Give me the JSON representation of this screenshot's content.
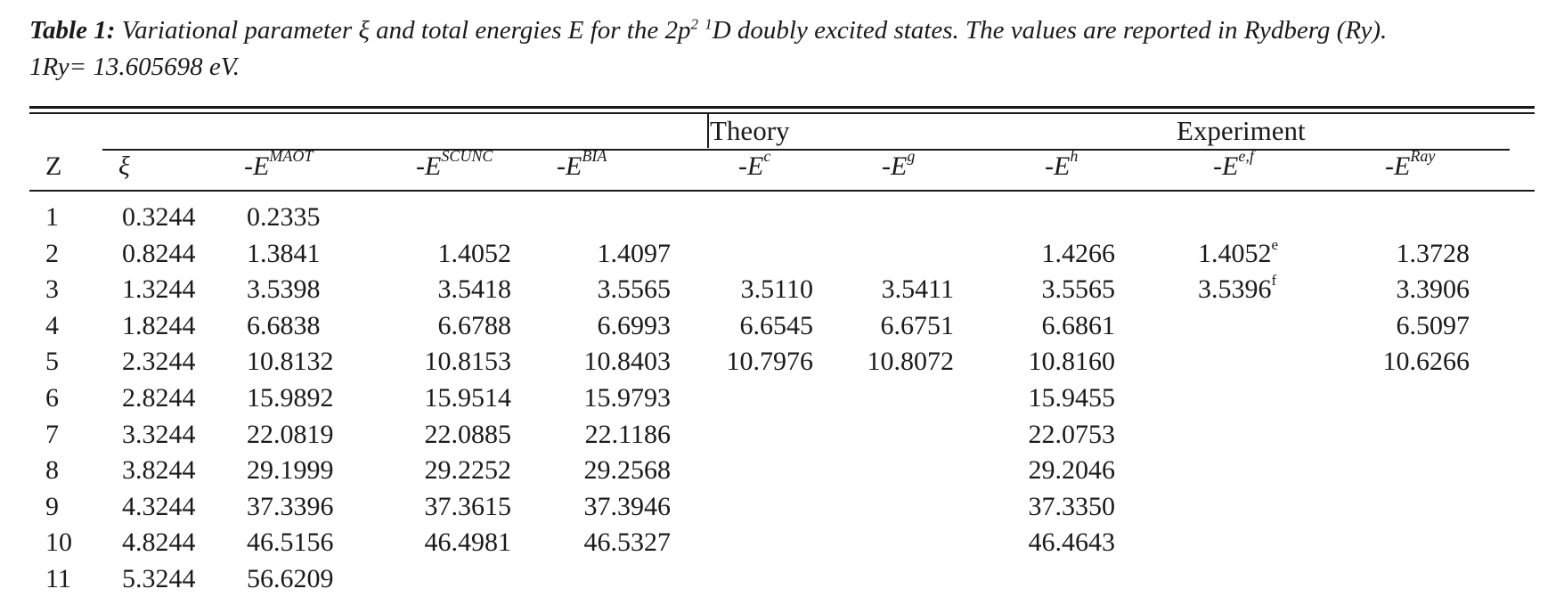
{
  "caption": {
    "lead": "Table 1:",
    "part1": " Variational parameter ",
    "xi": "ξ",
    "part2": " and total energies E for the 2p",
    "sup1": "2",
    "space": " ",
    "sup2": "1",
    "part3": "D doubly excited states. The values are reported in Rydberg (Ry).",
    "line2": "1Ry= 13.605698 eV."
  },
  "groups": {
    "theory": "Theory",
    "experiment": "Experiment"
  },
  "columns": [
    {
      "label": "Z",
      "sup": ""
    },
    {
      "label": "ξ",
      "sup": ""
    },
    {
      "label": "-E",
      "sup": "MAOT"
    },
    {
      "label": "-E",
      "sup": "SCUNC"
    },
    {
      "label": "-E",
      "sup": "BIA"
    },
    {
      "label": "-E",
      "sup": "c"
    },
    {
      "label": "-E",
      "sup": "g"
    },
    {
      "label": "-E",
      "sup": "h"
    },
    {
      "label": "-E",
      "sup": "e,f"
    },
    {
      "label": "-E",
      "sup": "Ray"
    }
  ],
  "rows": [
    {
      "z": "1",
      "xi": "0.3244",
      "maot": "0.2335",
      "scunc": "",
      "bia": "",
      "c": "",
      "g": "",
      "h": "",
      "ef": "",
      "ef_sup": "",
      "ray": ""
    },
    {
      "z": "2",
      "xi": "0.8244",
      "maot": "1.3841",
      "scunc": "1.4052",
      "bia": "1.4097",
      "c": "",
      "g": "",
      "h": "1.4266",
      "ef": "1.4052",
      "ef_sup": "e",
      "ray": "1.3728"
    },
    {
      "z": "3",
      "xi": "1.3244",
      "maot": "3.5398",
      "scunc": "3.5418",
      "bia": "3.5565",
      "c": "3.5110",
      "g": "3.5411",
      "h": "3.5565",
      "ef": "3.5396",
      "ef_sup": "f",
      "ray": "3.3906"
    },
    {
      "z": "4",
      "xi": "1.8244",
      "maot": "6.6838",
      "scunc": "6.6788",
      "bia": "6.6993",
      "c": "6.6545",
      "g": "6.6751",
      "h": "6.6861",
      "ef": "",
      "ef_sup": "",
      "ray": "6.5097"
    },
    {
      "z": "5",
      "xi": "2.3244",
      "maot": "10.8132",
      "scunc": "10.8153",
      "bia": "10.8403",
      "c": "10.7976",
      "g": "10.8072",
      "h": "10.8160",
      "ef": "",
      "ef_sup": "",
      "ray": "10.6266"
    },
    {
      "z": "6",
      "xi": "2.8244",
      "maot": "15.9892",
      "scunc": "15.9514",
      "bia": "15.9793",
      "c": "",
      "g": "",
      "h": "15.9455",
      "ef": "",
      "ef_sup": "",
      "ray": ""
    },
    {
      "z": "7",
      "xi": "3.3244",
      "maot": "22.0819",
      "scunc": "22.0885",
      "bia": "22.1186",
      "c": "",
      "g": "",
      "h": "22.0753",
      "ef": "",
      "ef_sup": "",
      "ray": ""
    },
    {
      "z": "8",
      "xi": "3.8244",
      "maot": "29.1999",
      "scunc": "29.2252",
      "bia": "29.2568",
      "c": "",
      "g": "",
      "h": "29.2046",
      "ef": "",
      "ef_sup": "",
      "ray": ""
    },
    {
      "z": "9",
      "xi": "4.3244",
      "maot": "37.3396",
      "scunc": "37.3615",
      "bia": "37.3946",
      "c": "",
      "g": "",
      "h": "37.3350",
      "ef": "",
      "ef_sup": "",
      "ray": ""
    },
    {
      "z": "10",
      "xi": "4.8244",
      "maot": "46.5156",
      "scunc": "46.4981",
      "bia": "46.5327",
      "c": "",
      "g": "",
      "h": "46.4643",
      "ef": "",
      "ef_sup": "",
      "ray": ""
    },
    {
      "z": "11",
      "xi": "5.3244",
      "maot": "56.6209",
      "scunc": "",
      "bia": "",
      "c": "",
      "g": "",
      "h": "",
      "ef": "",
      "ef_sup": "",
      "ray": ""
    }
  ]
}
